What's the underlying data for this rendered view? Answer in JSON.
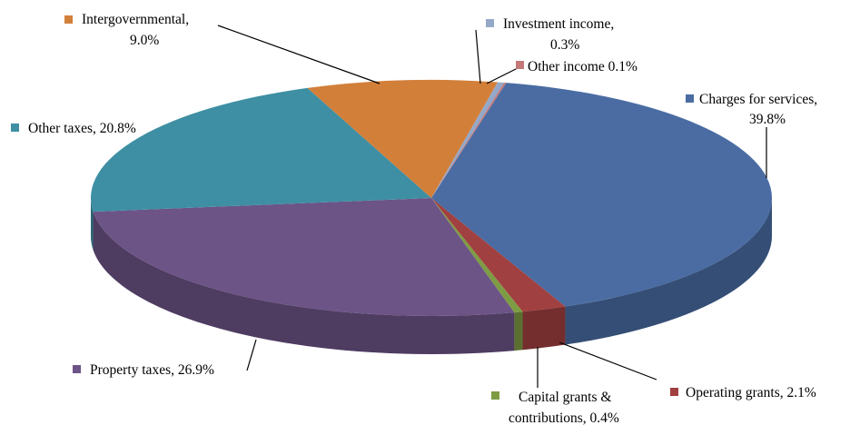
{
  "chart_data": {
    "type": "pie",
    "style": "3d",
    "title": "",
    "slices": [
      {
        "label": "Charges for services",
        "value": 39.8,
        "value_text": "39.8%",
        "color": "#4A6CA3"
      },
      {
        "label": "Operating grants",
        "value": 2.1,
        "value_text": "2.1%",
        "color": "#A14040"
      },
      {
        "label": "Capital grants & contributions",
        "value": 0.4,
        "value_text": "0.4%",
        "color": "#7E9C43"
      },
      {
        "label": "Property taxes",
        "value": 26.9,
        "value_text": "26.9%",
        "color": "#6C5487"
      },
      {
        "label": "Other taxes",
        "value": 20.8,
        "value_text": "20.8%",
        "color": "#3E8FA3"
      },
      {
        "label": "Intergovernmental",
        "value": 9.0,
        "value_text": "9.0%",
        "color": "#D27F3A"
      },
      {
        "label": "Investment income",
        "value": 0.3,
        "value_text": "0.3%",
        "color": "#94A8C9"
      },
      {
        "label": "Other income",
        "value": 0.1,
        "value_text": "0.1%",
        "color": "#C47878"
      }
    ],
    "labels": {
      "charges_line1": "Charges for services,",
      "charges_line2": "39.8%",
      "operating": "Operating  grants, 2.1%",
      "capital_line1": "Capital grants &",
      "capital_line2": "contributions, 0.4%",
      "property": "Property taxes, 26.9%",
      "other_taxes": "Other taxes, 20.8%",
      "intergov_line1": "Intergovernmental,",
      "intergov_line2": "9.0%",
      "investment_line1": "Investment income,",
      "investment_line2": "0.3%",
      "other_income": "Other income 0.1%"
    }
  }
}
